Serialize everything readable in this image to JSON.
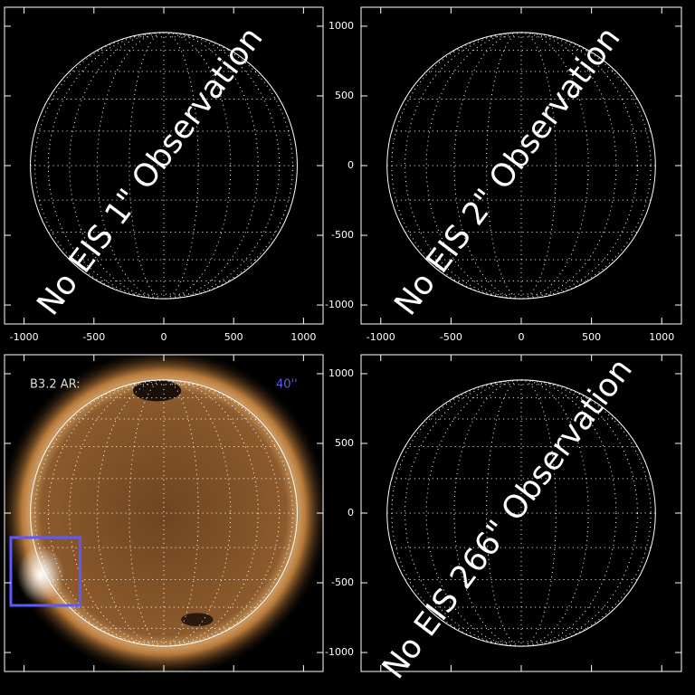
{
  "panels": [
    {
      "label": "No EIS 1\" Observation",
      "xlim": [
        -1140,
        1140
      ],
      "ylim": [
        -1136,
        1136
      ],
      "xticks": [
        -1000,
        -500,
        0,
        500,
        1000
      ],
      "yticks": [
        -1000,
        -500,
        0,
        500,
        1000
      ],
      "xtick_labels": true,
      "ytick_labels": false,
      "disk_radius": 955
    },
    {
      "label": "No EIS 2\" Observation",
      "xlim": [
        -1140,
        1140
      ],
      "ylim": [
        -1136,
        1136
      ],
      "xticks": [
        -1000,
        -500,
        0,
        500,
        1000
      ],
      "yticks": [
        -1000,
        -500,
        0,
        500,
        1000
      ],
      "xtick_labels": true,
      "ytick_labels": true,
      "disk_radius": 955
    },
    {
      "title": "B3.2 AR:",
      "scale_label": "40''",
      "xlim": [
        -1140,
        1140
      ],
      "ylim": [
        -1136,
        1136
      ],
      "xticks": [
        -1000,
        -500,
        0,
        500,
        1000
      ],
      "yticks": [
        -1000,
        -500,
        0,
        500,
        1000
      ],
      "xtick_labels": false,
      "ytick_labels": false,
      "disk_radius": 955,
      "box": {
        "x": [
          -1095,
          -600
        ],
        "y": [
          -175,
          -662
        ],
        "color": "#5a5aff"
      }
    },
    {
      "label": "No EIS 266\" Observation",
      "xlim": [
        -1140,
        1140
      ],
      "ylim": [
        -1136,
        1136
      ],
      "xticks": [
        -1000,
        -500,
        0,
        500,
        1000
      ],
      "yticks": [
        -1000,
        -500,
        0,
        500,
        1000
      ],
      "xtick_labels": false,
      "ytick_labels": true,
      "disk_radius": 955
    }
  ]
}
